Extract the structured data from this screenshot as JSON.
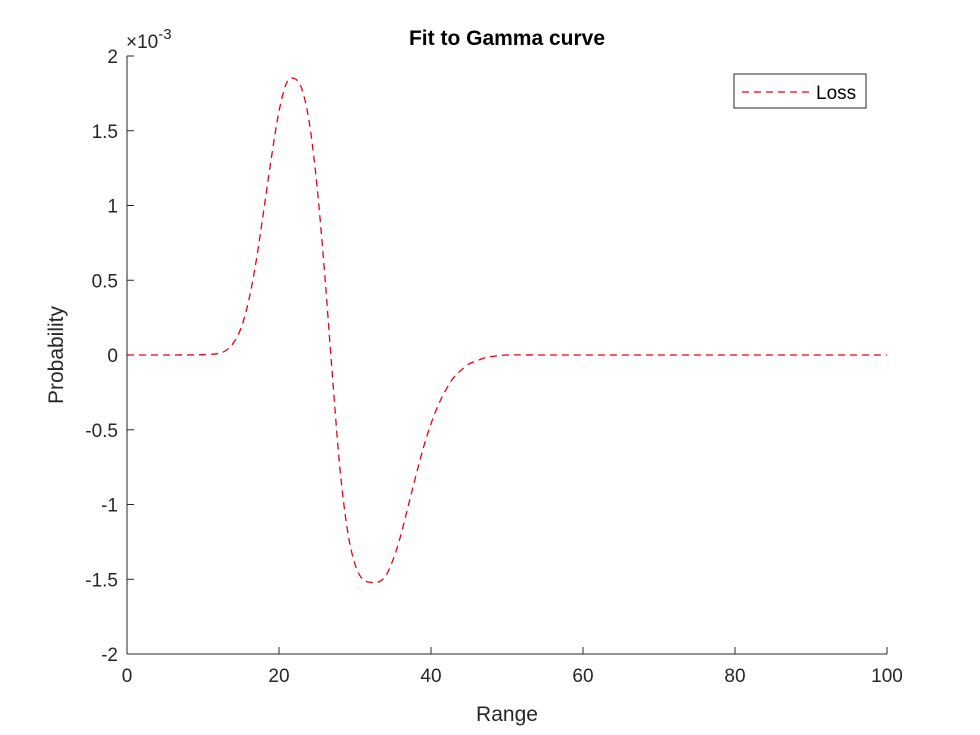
{
  "chart_data": {
    "type": "line",
    "title": "Fit to Gamma curve",
    "xlabel": "Range",
    "ylabel": "Probability",
    "xlim": [
      0,
      100
    ],
    "ylim": [
      -0.002,
      0.002
    ],
    "x_ticks": [
      0,
      20,
      40,
      60,
      80,
      100
    ],
    "x_tick_labels": [
      "0",
      "20",
      "40",
      "60",
      "80",
      "100"
    ],
    "y_ticks": [
      -2,
      -1.5,
      -1,
      -0.5,
      0,
      0.5,
      1,
      1.5,
      2
    ],
    "y_tick_labels": [
      "-2",
      "-1.5",
      "-1",
      "-0.5",
      "0",
      "0.5",
      "1",
      "1.5",
      "2"
    ],
    "y_exponent_label": "×10-3",
    "y_exponent_mantissa": "×10",
    "y_exponent_power": "-3",
    "grid": false,
    "legend_position": "top-right",
    "series": [
      {
        "name": "Loss",
        "color": "#e8000b",
        "line_style": "dashed",
        "x": [
          0,
          5,
          10,
          12,
          13,
          14,
          15,
          16,
          17,
          18,
          19,
          20,
          21,
          22,
          23,
          24,
          25,
          26,
          27,
          28,
          29,
          30,
          31,
          32,
          33,
          34,
          35,
          36,
          37,
          38,
          39,
          40,
          41,
          42,
          43,
          44,
          45,
          46,
          47,
          48,
          50,
          55,
          60,
          70,
          80,
          90,
          100
        ],
        "y": [
          0,
          0,
          2e-06,
          1e-05,
          3e-05,
          8e-05,
          0.00018,
          0.00036,
          0.00063,
          0.00097,
          0.00132,
          0.00163,
          0.00182,
          0.00185,
          0.00178,
          0.00155,
          0.00113,
          0.00055,
          -0.00012,
          -0.00075,
          -0.00117,
          -0.0014,
          -0.0015,
          -0.00152,
          -0.00152,
          -0.00148,
          -0.00137,
          -0.00121,
          -0.00101,
          -0.00081,
          -0.00062,
          -0.00046,
          -0.00033,
          -0.00023,
          -0.00015,
          -0.0001,
          -6e-05,
          -4e-05,
          -2e-05,
          -1e-05,
          0,
          0,
          0,
          0,
          0,
          0,
          0
        ]
      }
    ]
  }
}
